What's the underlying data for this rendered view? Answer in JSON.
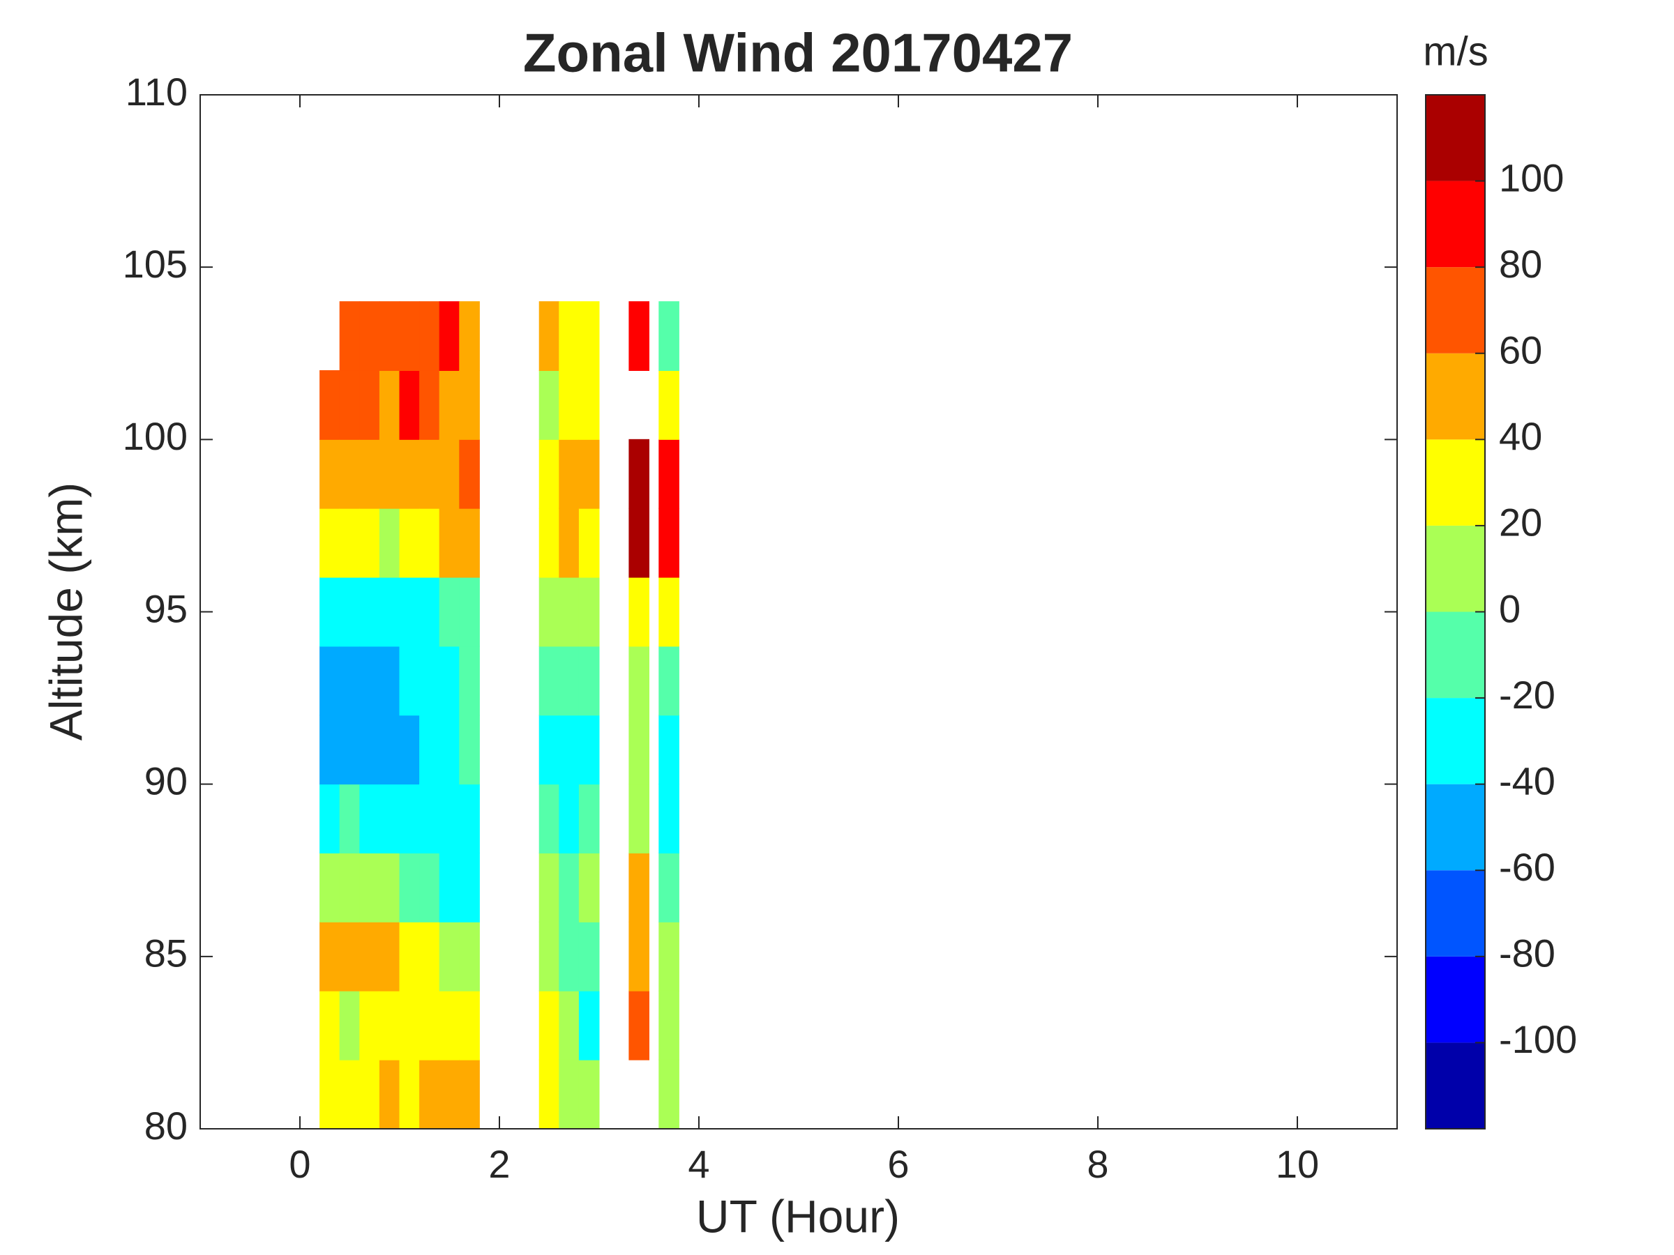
{
  "chart_data": {
    "type": "contour",
    "title": "Zonal Wind 20170427",
    "x_label": "UT (Hour)",
    "y_label": "Altitude (km)",
    "xlim": [
      -1,
      11
    ],
    "ylim": [
      80,
      110
    ],
    "xticks": [
      0,
      2,
      4,
      6,
      8,
      10
    ],
    "yticks": [
      80,
      85,
      90,
      95,
      100,
      105,
      110
    ],
    "x": [
      0.3,
      0.5,
      0.7,
      0.9,
      1.1,
      1.3,
      1.5,
      1.7,
      2.5,
      2.7,
      2.9,
      3.4,
      3.7
    ],
    "y": [
      81,
      83,
      85,
      87,
      89,
      91,
      93,
      95,
      97,
      99,
      101,
      103
    ],
    "z": [
      [
        30,
        30,
        50,
        10,
        -30,
        -50,
        -60,
        -40,
        30,
        50,
        70,
        null
      ],
      [
        30,
        10,
        50,
        0,
        -20,
        -60,
        -60,
        -40,
        20,
        50,
        70,
        70
      ],
      [
        30,
        30,
        50,
        0,
        -30,
        -60,
        -50,
        -40,
        20,
        50,
        70,
        70
      ],
      [
        50,
        30,
        50,
        10,
        -30,
        -50,
        -50,
        -40,
        10,
        50,
        50,
        70
      ],
      [
        30,
        30,
        30,
        -10,
        -40,
        -50,
        -40,
        -30,
        30,
        50,
        90,
        70
      ],
      [
        50,
        30,
        30,
        -20,
        -30,
        -40,
        -40,
        -30,
        30,
        50,
        70,
        70
      ],
      [
        50,
        30,
        10,
        -30,
        -40,
        -40,
        -40,
        -20,
        50,
        50,
        50,
        90
      ],
      [
        50,
        30,
        10,
        -30,
        -30,
        -20,
        -20,
        -10,
        50,
        70,
        50,
        50
      ],
      [
        30,
        30,
        10,
        10,
        -10,
        -30,
        -10,
        0,
        30,
        30,
        10,
        50
      ],
      [
        10,
        10,
        -10,
        -10,
        -30,
        -30,
        -20,
        10,
        50,
        50,
        30,
        30
      ],
      [
        0,
        -30,
        -10,
        10,
        -10,
        -30,
        -20,
        10,
        30,
        50,
        30,
        30
      ],
      [
        null,
        70,
        50,
        50,
        10,
        10,
        10,
        30,
        110,
        110,
        null,
        90
      ],
      [
        10,
        10,
        10,
        -10,
        -30,
        -30,
        -10,
        30,
        90,
        90,
        30,
        -10
      ]
    ],
    "colorbar": {
      "label": "m/s",
      "levels": [
        -120,
        -100,
        -80,
        -60,
        -40,
        -20,
        0,
        20,
        40,
        60,
        80,
        100,
        120
      ],
      "colors": [
        "#0000aa",
        "#0000ff",
        "#0055ff",
        "#00aaff",
        "#00ffff",
        "#55ffaa",
        "#aaff55",
        "#ffff00",
        "#ffaa00",
        "#ff5500",
        "#ff0000",
        "#aa0000"
      ],
      "ticks": [
        -100,
        -80,
        -60,
        -40,
        -20,
        0,
        20,
        40,
        60,
        80,
        100
      ]
    }
  }
}
